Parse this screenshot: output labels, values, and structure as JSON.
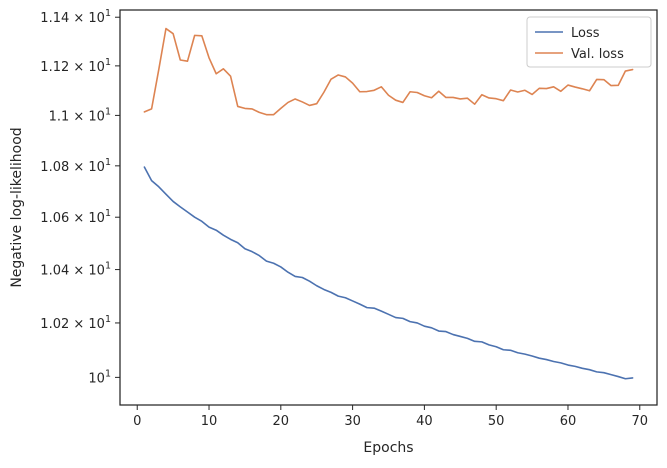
{
  "chart_data": {
    "type": "line",
    "xlabel": "Epochs",
    "ylabel": "Negative log-likelihood",
    "x_ticks": [
      0,
      10,
      20,
      30,
      40,
      50,
      60,
      70
    ],
    "y_ticks": [
      {
        "value": 10.0,
        "base": "10",
        "exp": "1",
        "prefix": ""
      },
      {
        "value": 10.2,
        "base": "10",
        "exp": "1",
        "prefix": "1.02 × "
      },
      {
        "value": 10.4,
        "base": "10",
        "exp": "1",
        "prefix": "1.04 × "
      },
      {
        "value": 10.6,
        "base": "10",
        "exp": "1",
        "prefix": "1.06 × "
      },
      {
        "value": 10.8,
        "base": "10",
        "exp": "1",
        "prefix": "1.08 × "
      },
      {
        "value": 11.0,
        "base": "10",
        "exp": "1",
        "prefix": "1.1 × "
      },
      {
        "value": 11.2,
        "base": "10",
        "exp": "1",
        "prefix": "1.12 × "
      },
      {
        "value": 11.4,
        "base": "10",
        "exp": "1",
        "prefix": "1.14 × "
      }
    ],
    "xlim": [
      -2.4,
      72.4
    ],
    "ylim": [
      9.9,
      11.43
    ],
    "y_scale": "log",
    "grid": false,
    "legend_position": "top-right",
    "series": [
      {
        "name": "Loss",
        "color": "#4c72b0",
        "x": [
          1,
          2,
          3,
          4,
          5,
          6,
          7,
          8,
          9,
          10,
          11,
          12,
          13,
          14,
          15,
          16,
          17,
          18,
          19,
          20,
          21,
          22,
          23,
          24,
          25,
          26,
          27,
          28,
          29,
          30,
          31,
          32,
          33,
          34,
          35,
          36,
          37,
          38,
          39,
          40,
          41,
          42,
          43,
          44,
          45,
          46,
          47,
          48,
          49,
          50,
          51,
          52,
          53,
          54,
          55,
          56,
          57,
          58,
          59,
          60,
          61,
          62,
          63,
          64,
          65,
          66,
          67,
          68,
          69
        ],
        "values": [
          10.795,
          10.742,
          10.718,
          10.689,
          10.661,
          10.64,
          10.62,
          10.6,
          10.584,
          10.562,
          10.55,
          10.531,
          10.515,
          10.502,
          10.479,
          10.468,
          10.453,
          10.432,
          10.424,
          10.41,
          10.39,
          10.374,
          10.37,
          10.356,
          10.339,
          10.325,
          10.314,
          10.3,
          10.294,
          10.282,
          10.27,
          10.257,
          10.255,
          10.244,
          10.232,
          10.22,
          10.217,
          10.205,
          10.2,
          10.188,
          10.182,
          10.17,
          10.168,
          10.157,
          10.15,
          10.143,
          10.132,
          10.13,
          10.119,
          10.112,
          10.101,
          10.099,
          10.09,
          10.085,
          10.078,
          10.07,
          10.065,
          10.058,
          10.053,
          10.045,
          10.04,
          10.033,
          10.028,
          10.02,
          10.017,
          10.01,
          10.003,
          9.995,
          9.998
        ]
      },
      {
        "name": "Val. loss",
        "color": "#dd8452",
        "x": [
          1,
          2,
          3,
          4,
          5,
          6,
          7,
          8,
          9,
          10,
          11,
          12,
          13,
          14,
          15,
          16,
          17,
          18,
          19,
          20,
          21,
          22,
          23,
          24,
          25,
          26,
          27,
          28,
          29,
          30,
          31,
          32,
          33,
          34,
          35,
          36,
          37,
          38,
          39,
          40,
          41,
          42,
          43,
          44,
          45,
          46,
          47,
          48,
          49,
          50,
          51,
          52,
          53,
          54,
          55,
          56,
          57,
          58,
          59,
          60,
          61,
          62,
          63,
          64,
          65,
          66,
          67,
          68,
          69
        ],
        "values": [
          11.014,
          11.026,
          11.185,
          11.353,
          11.332,
          11.224,
          11.219,
          11.325,
          11.323,
          11.233,
          11.168,
          11.188,
          11.158,
          11.036,
          11.028,
          11.026,
          11.012,
          11.003,
          11.003,
          11.028,
          11.052,
          11.066,
          11.054,
          11.04,
          11.047,
          11.093,
          11.146,
          11.163,
          11.155,
          11.13,
          11.095,
          11.096,
          11.101,
          11.115,
          11.081,
          11.061,
          11.052,
          11.095,
          11.092,
          11.079,
          11.071,
          11.097,
          11.072,
          11.072,
          11.066,
          11.069,
          11.045,
          11.083,
          11.07,
          11.067,
          11.059,
          11.102,
          11.094,
          11.101,
          11.084,
          11.109,
          11.108,
          11.115,
          11.097,
          11.122,
          11.114,
          11.107,
          11.099,
          11.145,
          11.144,
          11.12,
          11.121,
          11.179,
          11.185
        ]
      }
    ]
  }
}
